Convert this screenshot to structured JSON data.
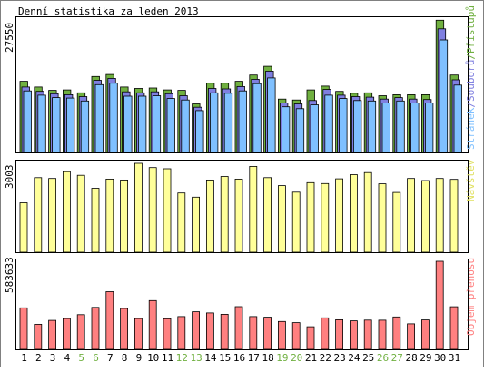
{
  "chart_data": [
    {
      "type": "bar",
      "title": "Denní statistika za leden 2013",
      "categories": [
        "1",
        "2",
        "3",
        "4",
        "5",
        "6",
        "7",
        "8",
        "9",
        "10",
        "11",
        "12",
        "13",
        "14",
        "15",
        "16",
        "17",
        "18",
        "19",
        "20",
        "21",
        "22",
        "23",
        "24",
        "25",
        "26",
        "27",
        "28",
        "29",
        "30",
        "31"
      ],
      "weekend_days": [
        "5",
        "6",
        "12",
        "13",
        "19",
        "20",
        "26",
        "27"
      ],
      "ylabel_parts": [
        "Stránek",
        "Souborů",
        "Přístupů"
      ],
      "ytick_max": "27550",
      "ylim": [
        0,
        27550
      ],
      "colors": {
        "hits": "#70B040",
        "files": "#7F7FE0",
        "pages": "#7FC0FF"
      },
      "series": [
        {
          "name": "Přístupů",
          "values": [
            14800,
            13600,
            12900,
            13000,
            12400,
            15800,
            16200,
            13600,
            13300,
            13400,
            13000,
            12900,
            10100,
            14400,
            14400,
            14800,
            16100,
            17900,
            11100,
            10900,
            13000,
            13800,
            12700,
            12300,
            12400,
            11800,
            12000,
            12000,
            12000,
            27500,
            16100
          ]
        },
        {
          "name": "Souborů",
          "values": [
            13600,
            12700,
            12200,
            12000,
            11600,
            15000,
            15400,
            12600,
            12400,
            12600,
            12200,
            11800,
            9400,
            13300,
            13200,
            13700,
            15200,
            16900,
            10300,
            10100,
            10800,
            13100,
            11900,
            11600,
            11500,
            11100,
            11400,
            11100,
            11000,
            25700,
            15100
          ]
        },
        {
          "name": "Stránek",
          "values": [
            12800,
            11900,
            11400,
            11300,
            10700,
            14100,
            14400,
            11700,
            11700,
            11800,
            11200,
            10900,
            8700,
            12400,
            12300,
            12800,
            14300,
            15500,
            9500,
            9100,
            9900,
            11900,
            11200,
            10800,
            10700,
            10300,
            10700,
            10300,
            10300,
            23400,
            14000
          ]
        }
      ]
    },
    {
      "type": "bar",
      "categories": [
        "1",
        "2",
        "3",
        "4",
        "5",
        "6",
        "7",
        "8",
        "9",
        "10",
        "11",
        "12",
        "13",
        "14",
        "15",
        "16",
        "17",
        "18",
        "19",
        "20",
        "21",
        "22",
        "23",
        "24",
        "25",
        "26",
        "27",
        "28",
        "29",
        "30",
        "31"
      ],
      "ylabel": "Návštěv",
      "ytick_max": "3003",
      "ylim": [
        0,
        3003
      ],
      "colors": {
        "visits": "#FFFF99"
      },
      "series": [
        {
          "name": "Návštěv",
          "values": [
            1670,
            2520,
            2490,
            2720,
            2600,
            2160,
            2470,
            2440,
            3003,
            2860,
            2820,
            2000,
            1860,
            2440,
            2560,
            2470,
            2900,
            2520,
            2250,
            2030,
            2350,
            2320,
            2480,
            2620,
            2690,
            2310,
            2020,
            2490,
            2420,
            2490,
            2460
          ]
        }
      ]
    },
    {
      "type": "bar",
      "categories": [
        "1",
        "2",
        "3",
        "4",
        "5",
        "6",
        "7",
        "8",
        "9",
        "10",
        "11",
        "12",
        "13",
        "14",
        "15",
        "16",
        "17",
        "18",
        "19",
        "20",
        "21",
        "22",
        "23",
        "24",
        "25",
        "26",
        "27",
        "28",
        "29",
        "30",
        "31"
      ],
      "ylabel": "Objem přenosu",
      "ytick_max": "583633",
      "ylim": [
        0,
        583633
      ],
      "colors": {
        "volume": "#FF8080"
      },
      "series": [
        {
          "name": "Objem přenosu",
          "values": [
            275000,
            166000,
            192000,
            204000,
            230000,
            278000,
            382000,
            271000,
            204000,
            323000,
            203000,
            217000,
            249000,
            241000,
            232000,
            283000,
            217000,
            213000,
            185000,
            177000,
            150000,
            209000,
            196000,
            189000,
            194000,
            193000,
            215000,
            169000,
            195000,
            583633,
            282000
          ]
        }
      ]
    }
  ]
}
